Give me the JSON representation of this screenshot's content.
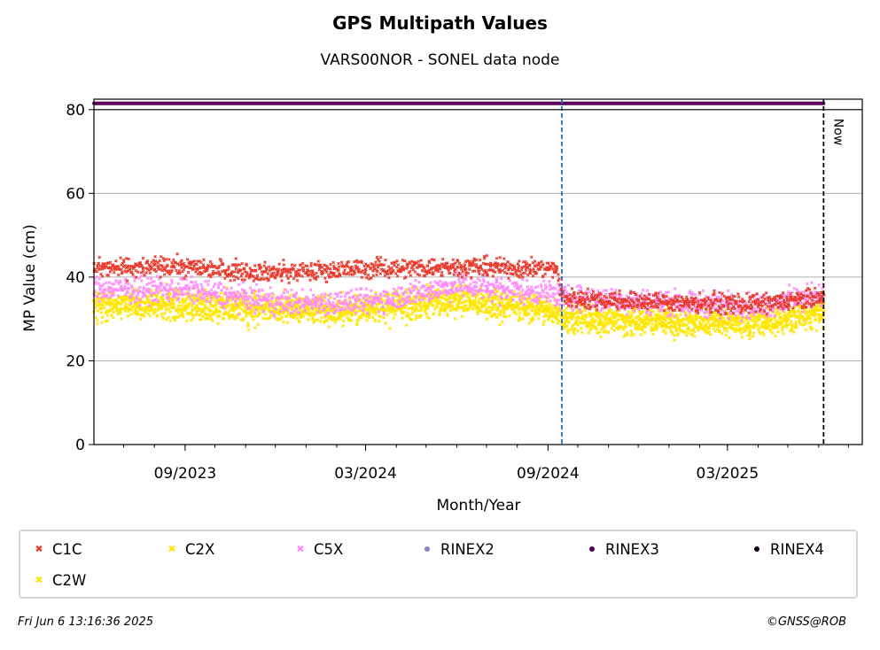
{
  "chart_data": {
    "type": "scatter",
    "title": "GPS Multipath Values",
    "subtitle": "VARS00NOR - SONEL data node",
    "xlabel": "Month/Year",
    "ylabel": "MP Value (cm)",
    "x_range": [
      "2023-06-01",
      "2025-07-15"
    ],
    "ylim": [
      0,
      82.5
    ],
    "y_ticks": [
      0,
      20,
      40,
      60,
      80
    ],
    "x_ticks": [
      {
        "date": "2023-09-01",
        "label": "09/2023"
      },
      {
        "date": "2024-03-01",
        "label": "03/2024"
      },
      {
        "date": "2024-09-01",
        "label": "09/2024"
      },
      {
        "date": "2025-03-01",
        "label": "03/2025"
      }
    ],
    "grid": "horizontal",
    "series": [
      {
        "name": "C1C",
        "marker": "x",
        "color": "#e8392c",
        "points": [
          [
            "2023-06-01",
            42
          ],
          [
            "2023-09-01",
            42.5
          ],
          [
            "2023-12-01",
            41
          ],
          [
            "2024-03-01",
            42
          ],
          [
            "2024-06-01",
            42.5
          ],
          [
            "2024-09-10",
            42
          ],
          [
            "2024-09-15",
            35
          ],
          [
            "2025-01-01",
            34
          ],
          [
            "2025-04-01",
            33.5
          ],
          [
            "2025-06-06",
            35
          ]
        ]
      },
      {
        "name": "C2X",
        "marker": "x",
        "color": "#ffe600",
        "points": [
          [
            "2023-06-01",
            33
          ],
          [
            "2023-09-01",
            33
          ],
          [
            "2023-12-01",
            32
          ],
          [
            "2024-03-01",
            32
          ],
          [
            "2024-06-01",
            34
          ],
          [
            "2024-09-10",
            32
          ],
          [
            "2024-09-15",
            30
          ],
          [
            "2025-01-01",
            29
          ],
          [
            "2025-04-01",
            29
          ],
          [
            "2025-06-06",
            31
          ]
        ]
      },
      {
        "name": "C5X",
        "marker": "x",
        "color": "#ff8aff",
        "points": [
          [
            "2023-06-01",
            37
          ],
          [
            "2023-09-01",
            37
          ],
          [
            "2023-12-01",
            34
          ],
          [
            "2024-03-01",
            34
          ],
          [
            "2024-06-01",
            38
          ],
          [
            "2024-09-10",
            36
          ],
          [
            "2024-09-15",
            35
          ],
          [
            "2025-01-01",
            34
          ],
          [
            "2025-04-01",
            33
          ],
          [
            "2025-06-06",
            36
          ]
        ]
      },
      {
        "name": "C2W",
        "marker": "x",
        "color": "#ffe600",
        "points": [
          [
            "2023-06-01",
            34
          ],
          [
            "2023-09-01",
            34
          ],
          [
            "2023-12-01",
            32.5
          ],
          [
            "2024-03-01",
            32.5
          ],
          [
            "2024-06-01",
            35
          ],
          [
            "2024-09-10",
            32
          ],
          [
            "2024-09-15",
            30.5
          ],
          [
            "2025-01-01",
            29.5
          ],
          [
            "2025-04-01",
            29.5
          ],
          [
            "2025-06-06",
            31.5
          ]
        ]
      },
      {
        "name": "RINEX3",
        "marker": "o",
        "color": "#5a005a",
        "points": [
          [
            "2023-06-01",
            81.5
          ],
          [
            "2025-06-06",
            81.5
          ]
        ]
      }
    ],
    "vlines": [
      {
        "date": "2024-09-15",
        "color": "#1f6fbf",
        "style": "dashed",
        "label": ""
      },
      {
        "date": "2025-06-06",
        "color": "#000000",
        "style": "dashed",
        "label": "Now"
      }
    ],
    "legend": {
      "placement": "bottom",
      "entries": [
        {
          "name": "C1C",
          "marker": "x",
          "color": "#e8392c"
        },
        {
          "name": "C2X",
          "marker": "x",
          "color": "#ffe600"
        },
        {
          "name": "C5X",
          "marker": "x",
          "color": "#ff8aff"
        },
        {
          "name": "RINEX2",
          "marker": "o",
          "color": "#8a7fc0"
        },
        {
          "name": "RINEX3",
          "marker": "o",
          "color": "#5a005a"
        },
        {
          "name": "RINEX4",
          "marker": "o",
          "color": "#1a0020"
        },
        {
          "name": "C2W",
          "marker": "x",
          "color": "#ffe600"
        }
      ]
    }
  },
  "footer": {
    "timestamp": "Fri Jun  6 13:16:36 2025",
    "copyright": "©GNSS@ROB"
  }
}
